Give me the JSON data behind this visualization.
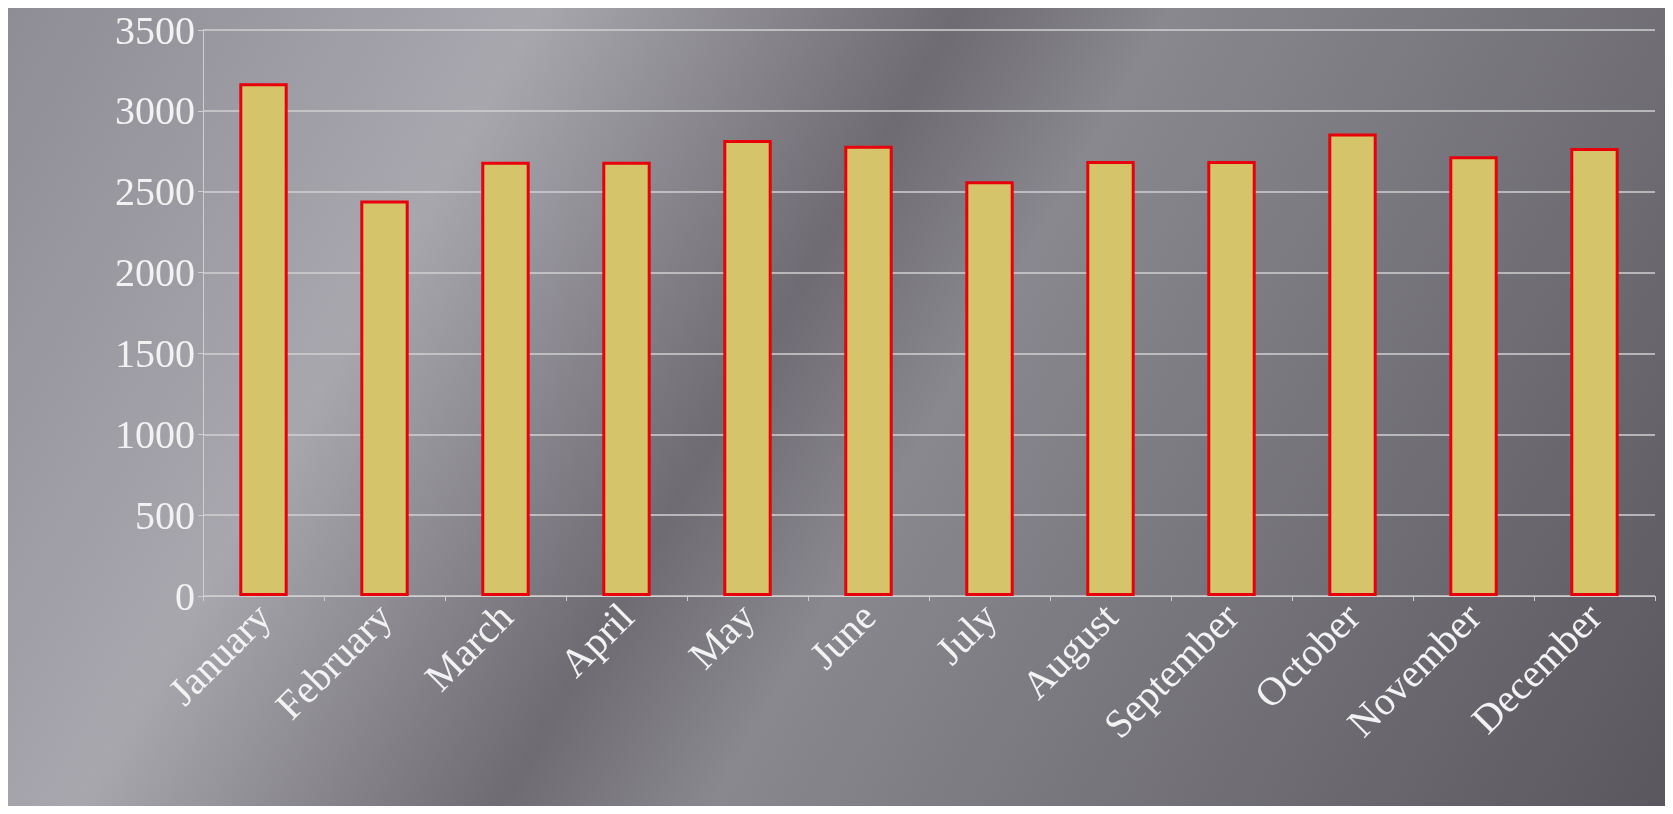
{
  "chart_data": {
    "type": "bar",
    "categories": [
      "January",
      "February",
      "March",
      "April",
      "May",
      "June",
      "July",
      "August",
      "September",
      "October",
      "November",
      "December"
    ],
    "values": [
      3170,
      2445,
      2685,
      2685,
      2820,
      2785,
      2565,
      2690,
      2690,
      2860,
      2720,
      2770
    ],
    "color": "#d6c46a",
    "ylim": [
      0,
      3500
    ],
    "yticks": [
      0,
      500,
      1000,
      1500,
      2000,
      2500,
      3000,
      3500
    ],
    "grid": "y"
  }
}
